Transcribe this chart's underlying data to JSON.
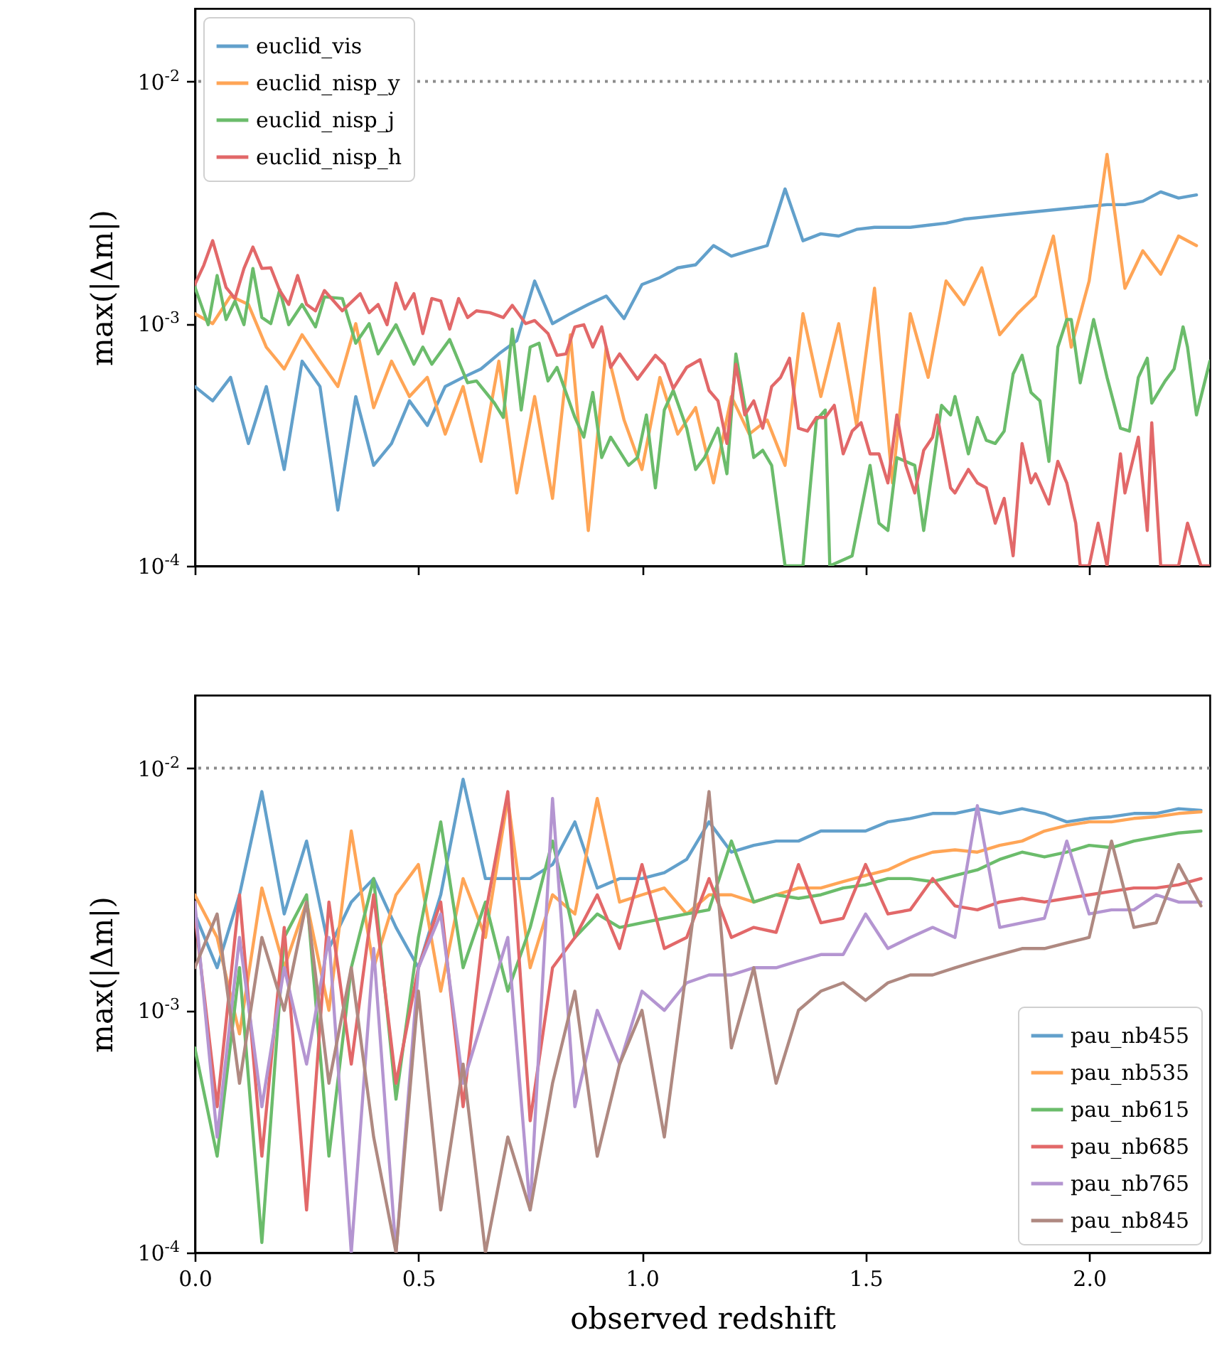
{
  "chart_data": [
    {
      "type": "line",
      "ylabel": "max(|Δm|)",
      "log": "y",
      "legend": "top left",
      "tick_labels": "y",
      "marker": "none",
      "line_style": "solid",
      "xlim": [
        0,
        2.27
      ],
      "xticks": [
        {
          "value": 0,
          "label": null
        },
        {
          "value": 0.5,
          "label": null
        },
        {
          "value": 1,
          "label": null
        },
        {
          "value": 1.5,
          "label": null
        },
        {
          "value": 2,
          "label": null
        }
      ],
      "ylim": [
        0.0001,
        0.02
      ],
      "yticks": [
        {
          "value": 0.0001,
          "label": "10$^{-4}$"
        },
        {
          "value": 0.001,
          "label": "10$^{-3}$"
        },
        {
          "value": 0.01,
          "label": "10$^{-2}$"
        }
      ],
      "ref_lines": [
        {
          "axis": "y",
          "value": 0.01,
          "color": "#8c8c8c",
          "line_style": "dotted"
        }
      ],
      "x": [
        0,
        0.04,
        0.08,
        0.12,
        0.16,
        0.2,
        0.24,
        0.28,
        0.32,
        0.36,
        0.4,
        0.44,
        0.48,
        0.52,
        0.56,
        0.6,
        0.64,
        0.68,
        0.72,
        0.76,
        0.8,
        0.84,
        0.88,
        0.92,
        0.96,
        1,
        1.04,
        1.08,
        1.12,
        1.16,
        1.2,
        1.24,
        1.28,
        1.32,
        1.36,
        1.4,
        1.44,
        1.48,
        1.52,
        1.56,
        1.6,
        1.64,
        1.68,
        1.72,
        1.76,
        1.8,
        1.84,
        1.88,
        1.92,
        1.96,
        2,
        2.04,
        2.08,
        2.12,
        2.16,
        2.2,
        2.24
      ],
      "series": [
        {
          "name": "euclid_vis",
          "color": "#62a0cb",
          "values": [
            0.00055,
            0.00048,
            0.0006,
            0.00032,
            0.00055,
            0.00025,
            0.0007,
            0.00055,
            0.00017,
            0.0005,
            0.00026,
            0.00032,
            0.00048,
            0.00038,
            0.00055,
            0.0006,
            0.00065,
            0.00075,
            0.00085,
            0.0015,
            0.001,
            0.0011,
            0.0012,
            0.0013,
            0.00105,
            0.00145,
            0.00155,
            0.0017,
            0.00175,
            0.0021,
            0.0019,
            0.002,
            0.0021,
            0.0036,
            0.0022,
            0.00235,
            0.0023,
            0.00245,
            0.0025,
            0.0025,
            0.0025,
            0.00255,
            0.0026,
            0.0027,
            0.00275,
            0.0028,
            0.00285,
            0.0029,
            0.00295,
            0.003,
            0.00305,
            0.0031,
            0.0031,
            0.0032,
            0.0035,
            0.0033,
            0.0034
          ]
        },
        {
          "name": "euclid_nisp_y",
          "color": "#ffa556",
          "values": [
            0.0011,
            0.001,
            0.0013,
            0.0012,
            0.0008,
            0.00065,
            0.0009,
            0.0007,
            0.00055,
            0.001,
            0.00045,
            0.0007,
            0.0005,
            0.0006,
            0.00035,
            0.00055,
            0.00027,
            0.0007,
            0.0002,
            0.0005,
            0.00019,
            0.0009,
            0.00014,
            0.0008,
            0.0004,
            0.00025,
            0.0006,
            0.00035,
            0.00045,
            0.00022,
            0.0005,
            0.00035,
            0.0004,
            0.00026,
            0.0011,
            0.0005,
            0.001,
            0.00038,
            0.0014,
            0.00022,
            0.0011,
            0.0006,
            0.0015,
            0.0012,
            0.0017,
            0.0009,
            0.0011,
            0.0013,
            0.0023,
            0.0008,
            0.0015,
            0.005,
            0.0014,
            0.002,
            0.0016,
            0.0023,
            0.0021
          ]
        },
        {
          "name": "euclid_nisp_j",
          "color": "#6bbc6b",
          "x": [
            0,
            0.03,
            0.05,
            0.07,
            0.09,
            0.11,
            0.13,
            0.15,
            0.17,
            0.19,
            0.21,
            0.24,
            0.27,
            0.29,
            0.33,
            0.36,
            0.39,
            0.41,
            0.45,
            0.49,
            0.51,
            0.53,
            0.57,
            0.61,
            0.63,
            0.67,
            0.69,
            0.71,
            0.73,
            0.75,
            0.77,
            0.79,
            0.81,
            0.85,
            0.87,
            0.89,
            0.91,
            0.93,
            0.97,
            0.99,
            1.01,
            1.03,
            1.05,
            1.07,
            1.1,
            1.12,
            1.14,
            1.17,
            1.19,
            1.21,
            1.25,
            1.27,
            1.29,
            1.32,
            1.36,
            1.39,
            1.41,
            1.42,
            1.47,
            1.51,
            1.53,
            1.55,
            1.57,
            1.61,
            1.63,
            1.67,
            1.69,
            1.7,
            1.73,
            1.75,
            1.77,
            1.79,
            1.81,
            1.83,
            1.85,
            1.87,
            1.89,
            1.91,
            1.93,
            1.95,
            1.96,
            1.98,
            2.01,
            2.04,
            2.07,
            2.09,
            2.11,
            2.13,
            2.14,
            2.17,
            2.19,
            2.21,
            2.22,
            2.24,
            2.27
          ],
          "values": [
            0.00142,
            0.00099,
            0.00158,
            0.00104,
            0.00124,
            0.00099,
            0.00169,
            0.00106,
            0.001,
            0.00138,
            0.00099,
            0.0012,
            0.00097,
            0.00129,
            0.00127,
            0.00083,
            0.001,
            0.00075,
            0.00099,
            0.00068,
            0.0008,
            0.00068,
            0.00086,
            0.00057,
            0.00058,
            0.00047,
            0.00041,
            0.00095,
            0.00044,
            0.0008,
            0.00083,
            0.00058,
            0.00066,
            0.00041,
            0.00034,
            0.00052,
            0.00028,
            0.00034,
            0.00026,
            0.00028,
            0.00042,
            0.00021,
            0.00044,
            0.00053,
            0.00037,
            0.00025,
            0.00028,
            0.00037,
            0.00024,
            0.00075,
            0.00028,
            0.0003,
            0.00026,
            0.0001,
            0.0001,
            0.0004,
            0.00044,
            0.0001,
            0.00011,
            0.00026,
            0.00015,
            0.00014,
            0.00028,
            0.00026,
            0.00014,
            0.00046,
            0.00042,
            0.0005,
            0.00029,
            0.00041,
            0.00033,
            0.00032,
            0.00036,
            0.00062,
            0.00074,
            0.00052,
            0.00048,
            0.00027,
            0.0008,
            0.00104,
            0.00104,
            0.00057,
            0.00104,
            0.0006,
            0.00037,
            0.00036,
            0.0006,
            0.00072,
            0.00047,
            0.00058,
            0.00065,
            0.00097,
            0.0008,
            0.00042,
            0.0007
          ]
        },
        {
          "name": "euclid_nisp_h",
          "color": "#e26869",
          "x": [
            0,
            0.02,
            0.04,
            0.07,
            0.09,
            0.11,
            0.13,
            0.15,
            0.17,
            0.19,
            0.21,
            0.23,
            0.25,
            0.27,
            0.29,
            0.33,
            0.37,
            0.39,
            0.41,
            0.43,
            0.45,
            0.47,
            0.49,
            0.51,
            0.53,
            0.55,
            0.57,
            0.59,
            0.61,
            0.63,
            0.66,
            0.69,
            0.71,
            0.74,
            0.76,
            0.79,
            0.81,
            0.83,
            0.85,
            0.87,
            0.89,
            0.91,
            0.93,
            0.95,
            0.99,
            1.03,
            1.05,
            1.07,
            1.1,
            1.13,
            1.15,
            1.17,
            1.19,
            1.21,
            1.23,
            1.25,
            1.27,
            1.29,
            1.31,
            1.33,
            1.35,
            1.37,
            1.39,
            1.41,
            1.43,
            1.45,
            1.47,
            1.49,
            1.51,
            1.53,
            1.55,
            1.57,
            1.59,
            1.61,
            1.63,
            1.65,
            1.66,
            1.69,
            1.7,
            1.73,
            1.75,
            1.77,
            1.79,
            1.81,
            1.83,
            1.85,
            1.87,
            1.88,
            1.91,
            1.93,
            1.95,
            1.97,
            1.98,
            2,
            2.02,
            2.04,
            2.07,
            2.08,
            2.11,
            2.13,
            2.14,
            2.16,
            2.2,
            2.22,
            2.25,
            2.27
          ],
          "values": [
            0.00145,
            0.00174,
            0.0022,
            0.00141,
            0.00127,
            0.00169,
            0.00207,
            0.00169,
            0.0017,
            0.00137,
            0.0012,
            0.00158,
            0.0012,
            0.00113,
            0.00137,
            0.00113,
            0.00133,
            0.00111,
            0.0012,
            0.00099,
            0.00147,
            0.00115,
            0.00133,
            0.00091,
            0.00127,
            0.00124,
            0.00095,
            0.00127,
            0.00106,
            0.00113,
            0.00111,
            0.00106,
            0.00119,
            0.001,
            0.00103,
            0.00091,
            0.00074,
            0.00075,
            0.00097,
            0.00099,
            0.0008,
            0.00097,
            0.00066,
            0.00075,
            0.00059,
            0.00074,
            0.00068,
            0.00054,
            0.00066,
            0.00071,
            0.00053,
            0.00048,
            0.00032,
            0.00068,
            0.00042,
            0.00048,
            0.00037,
            0.00055,
            0.0006,
            0.00072,
            0.00037,
            0.00036,
            0.00041,
            0.00041,
            0.00046,
            0.00029,
            0.00036,
            0.00039,
            0.00029,
            0.00029,
            0.00022,
            0.00042,
            0.00026,
            0.0002,
            0.0003,
            0.00034,
            0.00042,
            0.00021,
            0.0002,
            0.00025,
            0.00022,
            0.00021,
            0.00015,
            0.00019,
            0.00011,
            0.00032,
            0.00022,
            0.00024,
            0.00018,
            0.00027,
            0.00022,
            0.00015,
            0.0001,
            0.0001,
            0.00015,
            0.0001,
            0.00029,
            0.0002,
            0.00034,
            0.00014,
            0.00039,
            0.0001,
            0.0001,
            0.00015,
            0.0001,
            0.0001
          ]
        }
      ]
    },
    {
      "type": "line",
      "xlabel": "observed redshift",
      "ylabel": "max(|Δm|)",
      "log": "y",
      "legend": "bottom right",
      "marker": "none",
      "line_style": "solid",
      "xlim": [
        0,
        2.27
      ],
      "xticks": [
        {
          "value": 0,
          "label": "0.0"
        },
        0.5,
        {
          "value": 1,
          "label": "1.0"
        },
        1.5,
        {
          "value": 2,
          "label": "2.0"
        }
      ],
      "ylim": [
        0.0001,
        0.02
      ],
      "yticks": [
        {
          "value": 0.0001,
          "label": "10$^{-4}$"
        },
        {
          "value": 0.001,
          "label": "10$^{-3}$"
        },
        {
          "value": 0.01,
          "label": "10$^{-2}$"
        }
      ],
      "ref_lines": [
        {
          "axis": "y",
          "value": 0.01,
          "color": "#8c8c8c",
          "line_style": "dotted"
        }
      ],
      "x": [
        0,
        0.05,
        0.1,
        0.15,
        0.2,
        0.25,
        0.3,
        0.35,
        0.4,
        0.45,
        0.5,
        0.55,
        0.6,
        0.65,
        0.7,
        0.75,
        0.8,
        0.85,
        0.9,
        0.95,
        1,
        1.05,
        1.1,
        1.15,
        1.2,
        1.25,
        1.3,
        1.35,
        1.4,
        1.45,
        1.5,
        1.55,
        1.6,
        1.65,
        1.7,
        1.75,
        1.8,
        1.85,
        1.9,
        1.95,
        2,
        2.05,
        2.1,
        2.15,
        2.2,
        2.25
      ],
      "series": [
        {
          "name": "pau_nb455",
          "color": "#62a0cb",
          "values": [
            0.0025,
            0.0015,
            0.003,
            0.008,
            0.0025,
            0.005,
            0.0018,
            0.0028,
            0.0035,
            0.0022,
            0.0015,
            0.003,
            0.009,
            0.0035,
            0.0035,
            0.0035,
            0.004,
            0.006,
            0.0032,
            0.0035,
            0.0035,
            0.0037,
            0.0042,
            0.006,
            0.0045,
            0.0048,
            0.005,
            0.005,
            0.0055,
            0.0055,
            0.0055,
            0.006,
            0.0062,
            0.0065,
            0.0065,
            0.0068,
            0.0065,
            0.0068,
            0.0065,
            0.006,
            0.0062,
            0.0063,
            0.0065,
            0.0065,
            0.0068,
            0.0067
          ]
        },
        {
          "name": "pau_nb535",
          "color": "#ffa556",
          "values": [
            0.003,
            0.002,
            0.0008,
            0.0032,
            0.0015,
            0.0028,
            0.001,
            0.0055,
            0.0015,
            0.003,
            0.004,
            0.0012,
            0.0035,
            0.002,
            0.0075,
            0.0015,
            0.003,
            0.0025,
            0.0075,
            0.0028,
            0.003,
            0.0032,
            0.0025,
            0.003,
            0.003,
            0.0028,
            0.003,
            0.0032,
            0.0032,
            0.0034,
            0.0036,
            0.0038,
            0.0042,
            0.0045,
            0.0046,
            0.0045,
            0.0048,
            0.005,
            0.0055,
            0.0058,
            0.006,
            0.006,
            0.0062,
            0.0063,
            0.0065,
            0.0066
          ]
        },
        {
          "name": "pau_nb615",
          "color": "#6bbc6b",
          "values": [
            0.0007,
            0.00025,
            0.0015,
            0.00011,
            0.002,
            0.003,
            0.00025,
            0.0015,
            0.0035,
            0.00043,
            0.002,
            0.006,
            0.0015,
            0.0028,
            0.0012,
            0.0022,
            0.005,
            0.002,
            0.0025,
            0.0022,
            0.0023,
            0.0024,
            0.0025,
            0.0026,
            0.005,
            0.0028,
            0.003,
            0.0029,
            0.003,
            0.0032,
            0.0033,
            0.0035,
            0.0035,
            0.0034,
            0.0036,
            0.0038,
            0.0042,
            0.0045,
            0.0043,
            0.0045,
            0.0048,
            0.0047,
            0.005,
            0.0052,
            0.0054,
            0.0055
          ]
        },
        {
          "name": "pau_nb685",
          "color": "#e26869",
          "values": [
            0.0025,
            0.0004,
            0.003,
            0.00025,
            0.0022,
            0.00015,
            0.0028,
            0.0006,
            0.003,
            0.0005,
            0.0015,
            0.0028,
            0.0004,
            0.0025,
            0.008,
            0.00035,
            0.0015,
            0.002,
            0.003,
            0.0018,
            0.004,
            0.0018,
            0.002,
            0.0035,
            0.002,
            0.0022,
            0.0021,
            0.004,
            0.0023,
            0.0024,
            0.004,
            0.0025,
            0.0026,
            0.0035,
            0.0027,
            0.0026,
            0.0028,
            0.0029,
            0.0028,
            0.0029,
            0.003,
            0.0031,
            0.0032,
            0.0032,
            0.0033,
            0.0035
          ]
        },
        {
          "name": "pau_nb765",
          "color": "#b495d1",
          "values": [
            0.0028,
            0.0003,
            0.002,
            0.0004,
            0.0015,
            0.0006,
            0.002,
            0.0001,
            0.0018,
            0.0001,
            0.0015,
            0.0025,
            0.0005,
            0.001,
            0.002,
            0.00015,
            0.0075,
            0.0004,
            0.001,
            0.0006,
            0.0012,
            0.001,
            0.0013,
            0.0014,
            0.0014,
            0.0015,
            0.0015,
            0.0016,
            0.0017,
            0.0017,
            0.0025,
            0.0018,
            0.002,
            0.0022,
            0.002,
            0.007,
            0.0022,
            0.0023,
            0.0024,
            0.005,
            0.0025,
            0.0026,
            0.0026,
            0.003,
            0.0028,
            0.0028
          ]
        },
        {
          "name": "pau_nb845",
          "color": "#af8981",
          "values": [
            0.0015,
            0.0025,
            0.0005,
            0.002,
            0.001,
            0.0028,
            0.0005,
            0.0015,
            0.0003,
            0.0001,
            0.0012,
            0.00015,
            0.0006,
            0.0001,
            0.0003,
            0.00015,
            0.0005,
            0.0012,
            0.00025,
            0.0006,
            0.001,
            0.0003,
            0.0015,
            0.008,
            0.0007,
            0.0015,
            0.0005,
            0.001,
            0.0012,
            0.0013,
            0.0011,
            0.0013,
            0.0014,
            0.0014,
            0.0015,
            0.0016,
            0.0017,
            0.0018,
            0.0018,
            0.0019,
            0.002,
            0.005,
            0.0022,
            0.0023,
            0.004,
            0.0027
          ]
        }
      ]
    }
  ]
}
